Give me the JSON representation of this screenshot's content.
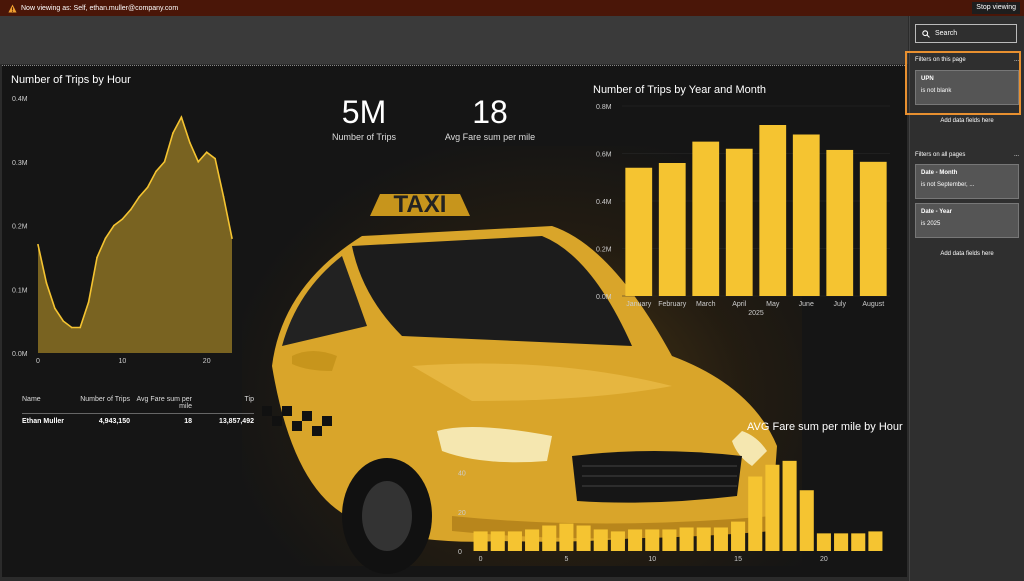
{
  "topbar": {
    "viewing_text": "Now viewing as: Self, ethan.muller@company.com",
    "stop_label": "Stop viewing"
  },
  "colors": {
    "accent": "#f5c431",
    "topbar": "#4a1608",
    "highlight": "#e89030"
  },
  "icons": {
    "warning": "warning-icon",
    "search": "search-icon",
    "more": "ellipsis-icon",
    "hero": "taxi-car-image"
  },
  "hero": {
    "sign_text": "TAXI"
  },
  "kpis": [
    {
      "value": "5M",
      "label": "Number of Trips"
    },
    {
      "value": "18",
      "label": "Avg Fare sum per mile"
    }
  ],
  "table": {
    "headers": [
      "Name",
      "Number of Trips",
      "Avg Fare sum per mile",
      "Tip"
    ],
    "rows": [
      [
        "Ethan Muller",
        "4,943,150",
        "18",
        "13,857,492"
      ]
    ]
  },
  "filters": {
    "search_label": "Search",
    "page_title": "Filters on this page",
    "page_filters": [
      {
        "name": "UPN",
        "value": "is not blank"
      }
    ],
    "add_label": "Add data fields here",
    "all_title": "Filters on all pages",
    "all_filters": [
      {
        "name": "Date - Month",
        "value": "is not September, ..."
      },
      {
        "name": "Date - Year",
        "value": "is 2025"
      }
    ],
    "add_label_2": "Add data fields here",
    "more": "..."
  },
  "chart_data": [
    {
      "type": "area",
      "title": "Number of Trips by Hour",
      "x": [
        0,
        1,
        2,
        3,
        4,
        5,
        6,
        7,
        8,
        9,
        10,
        11,
        12,
        13,
        14,
        15,
        16,
        17,
        18,
        19,
        20,
        21,
        22,
        23
      ],
      "values": [
        170000,
        110000,
        70000,
        50000,
        40000,
        40000,
        80000,
        150000,
        180000,
        200000,
        210000,
        225000,
        245000,
        260000,
        285000,
        300000,
        345000,
        370000,
        330000,
        300000,
        315000,
        305000,
        245000,
        180000
      ],
      "ylim": [
        0,
        400000
      ],
      "y_ticks": [
        "0.0M",
        "0.1M",
        "0.2M",
        "0.3M",
        "0.4M"
      ],
      "x_ticks": [
        "0",
        "10",
        "20"
      ]
    },
    {
      "type": "bar",
      "title": "Number of Trips by Year and Month",
      "categories": [
        "January",
        "February",
        "March",
        "April",
        "May",
        "June",
        "July",
        "August"
      ],
      "values": [
        540000,
        560000,
        650000,
        620000,
        720000,
        680000,
        615000,
        565000
      ],
      "ylim": [
        0,
        800000
      ],
      "y_ticks": [
        "0.0M",
        "0.2M",
        "0.4M",
        "0.6M",
        "0.8M"
      ],
      "xlabel": "2025"
    },
    {
      "type": "bar",
      "title": "AVG Fare sum per mile by Hour",
      "x": [
        0,
        1,
        2,
        3,
        4,
        5,
        6,
        7,
        8,
        9,
        10,
        11,
        12,
        13,
        14,
        15,
        16,
        17,
        18,
        19,
        20,
        21,
        22,
        23
      ],
      "values": [
        10,
        10,
        10,
        11,
        13,
        14,
        13,
        11,
        10,
        11,
        11,
        11,
        12,
        12,
        12,
        15,
        38,
        44,
        46,
        31,
        9,
        9,
        9,
        10
      ],
      "ylim": [
        0,
        50
      ],
      "y_ticks": [
        "0",
        "20",
        "40"
      ],
      "x_ticks": [
        "0",
        "5",
        "10",
        "15",
        "20"
      ]
    }
  ]
}
